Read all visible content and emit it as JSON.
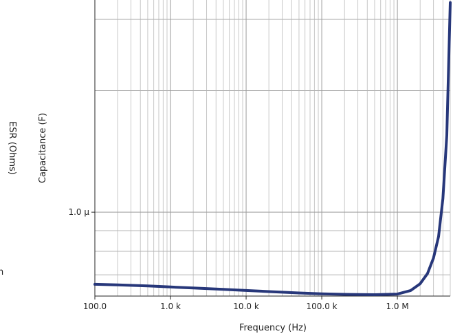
{
  "chart_data": {
    "type": "line",
    "x_scale": "log",
    "y_scale": "log",
    "xlabel": "Frequency (Hz)",
    "ylabel": "Capacitance (F)",
    "secondary_ylabel": "ESR (Ohms)",
    "partial_label_text": "n",
    "x_ticks": [
      {
        "value": 100,
        "label": "100.0"
      },
      {
        "value": 1000,
        "label": "1.0 k"
      },
      {
        "value": 10000,
        "label": "10.0 k"
      },
      {
        "value": 100000,
        "label": "100.0 k"
      },
      {
        "value": 1000000,
        "label": "1.0 M"
      }
    ],
    "y_ticks": [
      {
        "value": 1e-06,
        "label": "1.0 µ"
      }
    ],
    "xlim": [
      100,
      5000000
    ],
    "ylim": [
      6.2e-07,
      3.35e-06
    ],
    "grid": true,
    "series": [
      {
        "color": "#27377a",
        "x": [
          100,
          200,
          500,
          1000,
          2000,
          5000,
          10000,
          20000,
          50000,
          100000,
          200000,
          500000,
          1000000,
          1500000,
          2000000,
          2500000,
          3000000,
          3500000,
          4000000,
          4500000,
          5000000
        ],
        "y": [
          6.63e-07,
          6.61e-07,
          6.57e-07,
          6.53e-07,
          6.49e-07,
          6.44e-07,
          6.4e-07,
          6.36e-07,
          6.31e-07,
          6.28e-07,
          6.26e-07,
          6.25e-07,
          6.27e-07,
          6.4e-07,
          6.65e-07,
          7.05e-07,
          7.7e-07,
          8.7e-07,
          1.08e-06,
          1.55e-06,
          3.3e-06
        ]
      }
    ]
  }
}
